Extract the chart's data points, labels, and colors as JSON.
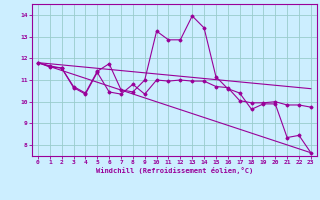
{
  "background_color": "#cceeff",
  "grid_color": "#99cccc",
  "line_color": "#990099",
  "xlabel": "Windchill (Refroidissement éolien,°C)",
  "xlim": [
    -0.5,
    23.5
  ],
  "ylim": [
    7.5,
    14.5
  ],
  "yticks": [
    8,
    9,
    10,
    11,
    12,
    13,
    14
  ],
  "xticks": [
    0,
    1,
    2,
    3,
    4,
    5,
    6,
    7,
    8,
    9,
    10,
    11,
    12,
    13,
    14,
    15,
    16,
    17,
    18,
    19,
    20,
    21,
    22,
    23
  ],
  "line1_x": [
    0,
    1,
    2,
    3,
    4,
    5,
    6,
    7,
    8,
    9,
    10,
    11,
    12,
    13,
    14,
    15,
    16,
    17,
    18,
    19,
    20,
    21,
    22,
    23
  ],
  "line1_y": [
    11.8,
    11.6,
    11.55,
    10.65,
    10.35,
    11.35,
    10.45,
    10.35,
    10.8,
    10.35,
    11.0,
    10.95,
    11.0,
    10.95,
    10.95,
    10.7,
    10.65,
    10.05,
    9.95,
    9.95,
    10.0,
    9.85,
    9.85,
    9.75
  ],
  "line2_x": [
    0,
    23
  ],
  "line2_y": [
    11.8,
    10.6
  ],
  "line3_x": [
    0,
    1,
    2,
    3,
    4,
    5,
    6,
    7,
    8,
    9,
    10,
    11,
    12,
    13,
    14,
    15,
    16,
    17,
    18,
    19,
    20,
    21,
    22,
    23
  ],
  "line3_y": [
    11.8,
    11.65,
    11.55,
    10.7,
    10.4,
    11.4,
    11.75,
    10.55,
    10.45,
    11.0,
    13.25,
    12.85,
    12.85,
    13.95,
    13.4,
    11.15,
    10.6,
    10.4,
    9.65,
    9.9,
    9.9,
    8.35,
    8.45,
    7.65
  ],
  "line4_x": [
    0,
    23
  ],
  "line4_y": [
    11.8,
    7.65
  ]
}
